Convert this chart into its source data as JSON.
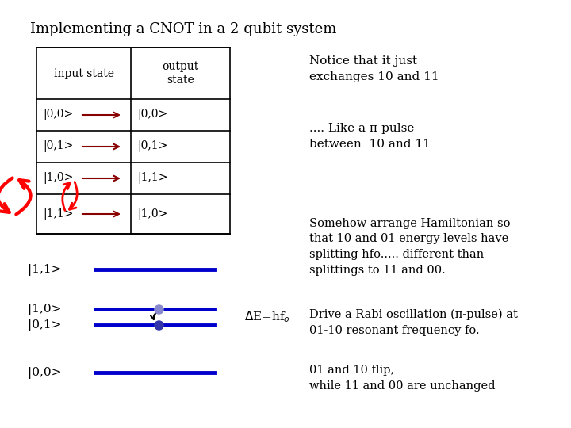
{
  "title": "Implementing a CNOT in a 2-qubit system",
  "bg_color": "#ffffff",
  "row_labels_in": [
    "|0,0>",
    "|0,1>",
    "|1,0>",
    "|1,1>"
  ],
  "row_labels_out": [
    "|0,0>",
    "|0,1>",
    "|1,1>",
    "|1,0>"
  ],
  "notice_text": "Notice that it just\nexchanges 10 and 11",
  "like_text": ".... Like a π-pulse\nbetween  10 and 11",
  "somehow_text": "Somehow arrange Hamiltonian so\nthat 10 and 01 energy levels have\nsplitting hfo..... different than\nsplittings to 11 and 00.",
  "drive_text": "Drive a Rabi oscillation (π-pulse) at\n01-10 resonant frequency fo.",
  "flip_text": "01 and 10 flip,\nwhile 11 and 00 are unchanged",
  "line_color": "#0000cc",
  "arrow_color": "#880000",
  "table_header": [
    "input state",
    "output\nstate"
  ]
}
